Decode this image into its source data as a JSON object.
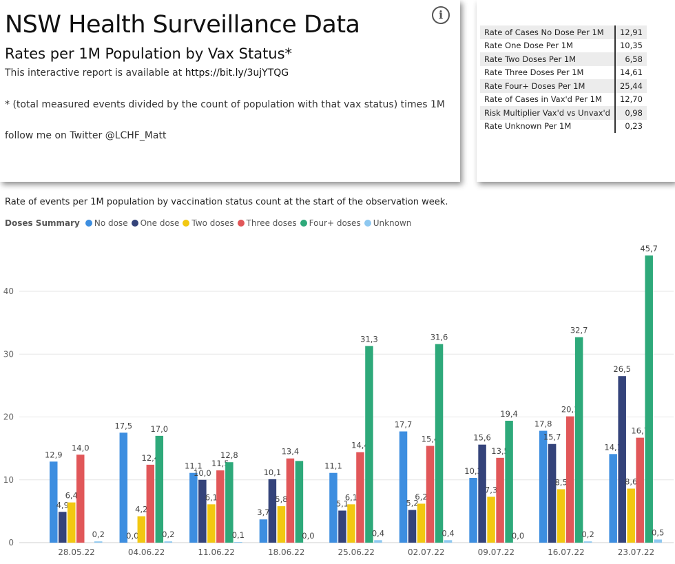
{
  "header": {
    "title": "NSW Health Surveillance Data",
    "subtitle": "Rates per 1M Population by Vax Status*",
    "report_prefix": "This interactive report is available at ",
    "report_link": "https://bit.ly/3ujYTQG",
    "footnote": "* (total measured events divided by the count of population with that vax status) times 1M",
    "twitter": "follow me on Twitter @LCHF_Matt",
    "info_icon": "i"
  },
  "stats": [
    {
      "label": "Rate of Cases No Dose Per 1M",
      "value": "12,91"
    },
    {
      "label": "Rate One Dose Per 1M",
      "value": "10,35"
    },
    {
      "label": "Rate Two Doses Per 1M",
      "value": "6,58"
    },
    {
      "label": "Rate Three Doses Per 1M",
      "value": "14,61"
    },
    {
      "label": "Rate Four+ Doses Per 1M",
      "value": "25,44"
    },
    {
      "label": "Rate of Cases in Vax'd Per 1M",
      "value": "12,70"
    },
    {
      "label": "Risk Multiplier Vax'd vs Unvax'd",
      "value": "0,98"
    },
    {
      "label": "Rate Unknown Per 1M",
      "value": "0,23"
    }
  ],
  "chart_data": {
    "type": "bar",
    "title": "Rate of events per 1M population by vaccination status count at the start of the observation week.",
    "legend_title": "Doses Summary",
    "categories": [
      "28.05.22",
      "04.06.22",
      "11.06.22",
      "18.06.22",
      "25.06.22",
      "02.07.22",
      "09.07.22",
      "16.07.22",
      "23.07.22"
    ],
    "y_ticks": [
      "0",
      "10",
      "20",
      "30",
      "40"
    ],
    "ylim": [
      0,
      48
    ],
    "series": [
      {
        "name": "No dose",
        "color": "#3d8ee0",
        "values": [
          12.9,
          17.5,
          11.1,
          3.7,
          11.1,
          17.7,
          10.3,
          17.8,
          14.1
        ],
        "labels": [
          "12,9",
          "17,5",
          "11,1",
          "3,7",
          "11,1",
          "17,7",
          "10,3",
          "17,8",
          "14,1"
        ]
      },
      {
        "name": "One dose",
        "color": "#34437a",
        "values": [
          4.9,
          0.0,
          10.0,
          10.1,
          5.1,
          5.2,
          15.6,
          15.7,
          26.5
        ],
        "labels": [
          "4,9",
          "0,0",
          "10,0",
          "10,1",
          "5,1",
          "5,2",
          "15,6",
          "15,7",
          "26,5"
        ]
      },
      {
        "name": "Two doses",
        "color": "#f2c811",
        "values": [
          6.4,
          4.2,
          6.1,
          5.8,
          6.1,
          6.2,
          7.3,
          8.5,
          8.6
        ],
        "labels": [
          "6,4",
          "4,2",
          "6,1",
          "5,8",
          "6,1",
          "6,2",
          "7,3",
          "8,5",
          "8,6"
        ]
      },
      {
        "name": "Three doses",
        "color": "#e15759",
        "values": [
          14.0,
          12.4,
          11.5,
          13.4,
          14.4,
          15.4,
          13.5,
          20.1,
          16.7
        ],
        "labels": [
          "14,0",
          "12,4",
          "11,5",
          "13,4",
          "14,4",
          "15,4",
          "13,5",
          "20,1",
          "16,7"
        ]
      },
      {
        "name": "Four+ doses",
        "color": "#2ea97a",
        "values": [
          null,
          17.0,
          12.8,
          13.0,
          31.3,
          31.6,
          19.4,
          32.7,
          45.7
        ],
        "labels": [
          "",
          "17,0",
          "12,8",
          "",
          "31,3",
          "31,6",
          "19,4",
          "32,7",
          "45,7"
        ]
      },
      {
        "name": "Unknown",
        "color": "#8ec8f0",
        "values": [
          0.2,
          0.2,
          0.1,
          0.0,
          0.4,
          0.4,
          0.0,
          0.2,
          0.5
        ],
        "labels": [
          "0,2",
          "0,2",
          "0,1",
          "0,0",
          "0,4",
          "0,4",
          "0,0",
          "0,2",
          "0,5"
        ]
      }
    ]
  }
}
